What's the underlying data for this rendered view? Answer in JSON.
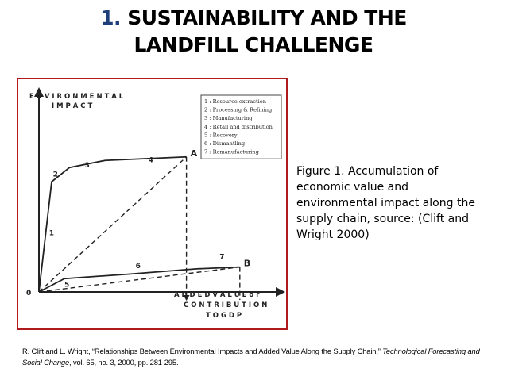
{
  "slide": {
    "title_number": "1.",
    "title_line1": "SUSTAINABILITY AND THE",
    "title_line2": "LANDFILL CHALLENGE",
    "caption": "Figure 1. Accumulation of economic value and environmental impact along the supply chain, source: (Clift and Wright 2000)",
    "reference_a": "R. Clift and L. Wright, “Relationships Between Environmental Impacts and Added Value Along the Supply Chain,” ",
    "reference_journal": "Technological Forecasting and Social Change",
    "reference_b": ", vol. 65, no. 3, 2000, pp. 281-295.",
    "colors": {
      "title_number": "#1f3f7a",
      "figure_border": "#b01a1a"
    }
  },
  "chart_data": {
    "type": "line",
    "title": "",
    "ylabel_line1": "E N V I R O N M E N T A L",
    "ylabel_line2": "I M P A C T",
    "xlabel_line1": "A D D E D   V A L U E  o r",
    "xlabel_line2": "C O N T R I B U T I O N",
    "xlabel_line3": "T O   G D P",
    "origin_label": "0",
    "grid": false,
    "xlim": [
      0,
      10
    ],
    "ylim": [
      0,
      10
    ],
    "legend_position": "top-right",
    "legend": [
      "1 : Resource extraction",
      "2 : Processing & Refining",
      "3 : Manufacturing",
      "4 : Retail and distribution",
      "5 : Recovery",
      "6 : Dismantling",
      "7 : Remanufacturing"
    ],
    "series": [
      {
        "name": "A",
        "x": [
          0,
          0.5,
          1.2,
          2.6,
          5.8
        ],
        "y": [
          0,
          6.2,
          7.0,
          7.4,
          7.6
        ],
        "stage_labels": [
          {
            "label": "1",
            "x": 0.4,
            "y": 3.2
          },
          {
            "label": "2",
            "x": 0.55,
            "y": 6.5
          },
          {
            "label": "3",
            "x": 1.8,
            "y": 7.0
          },
          {
            "label": "4",
            "x": 4.3,
            "y": 7.3
          }
        ]
      },
      {
        "name": "B",
        "x": [
          0,
          1.0,
          3.5,
          6.2,
          7.9
        ],
        "y": [
          0,
          0.75,
          1.0,
          1.3,
          1.4
        ],
        "stage_labels": [
          {
            "label": "5",
            "x": 1.0,
            "y": 0.3
          },
          {
            "label": "6",
            "x": 3.8,
            "y": 1.35
          },
          {
            "label": "7",
            "x": 7.1,
            "y": 1.85
          }
        ]
      }
    ],
    "point_labels": [
      {
        "label": "A",
        "x": 5.8,
        "y": 7.6
      },
      {
        "label": "B",
        "x": 7.9,
        "y": 1.4
      }
    ]
  }
}
